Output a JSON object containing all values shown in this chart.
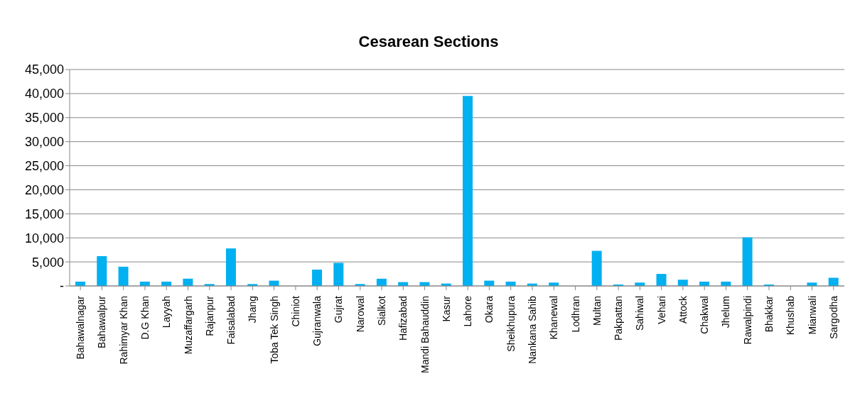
{
  "chart_data": {
    "type": "bar",
    "title": "Cesarean Sections",
    "categories": [
      "Bahawalnagar",
      "Bahawalpur",
      "Rahimyar Khan",
      "D.G Khan",
      "Layyah",
      "Muzaffargarh",
      "Rajanpur",
      "Faisalabad",
      "Jhang",
      "Toba Tek Singh",
      "Chiniot",
      "Gujranwala",
      "Gujrat",
      "Narowal",
      "Sialkot",
      "Hafizabad",
      "Mandi Bahauddin",
      "Kasur",
      "Lahore",
      "Okara",
      "Sheikhupura",
      "Nankana Sahib",
      "Khanewal",
      "Lodhran",
      "Multan",
      "Pakpattan",
      "Sahiwal",
      "Vehari",
      "Attock",
      "Chakwal",
      "Jhelum",
      "Rawalpindi",
      "Bhakkar",
      "Khushab",
      "Mianwali",
      "Sargodha"
    ],
    "values": [
      900,
      6200,
      4000,
      900,
      900,
      1500,
      400,
      7800,
      400,
      1100,
      0,
      3400,
      4800,
      400,
      1500,
      800,
      800,
      500,
      39500,
      1100,
      900,
      500,
      700,
      0,
      7300,
      300,
      700,
      2500,
      1300,
      900,
      900,
      10100,
      300,
      0,
      700,
      1700
    ],
    "color": "#00b0f0",
    "ylim": [
      0,
      45000
    ],
    "yticks": [
      {
        "value": 0,
        "label": "-"
      },
      {
        "value": 5000,
        "label": "5,000"
      },
      {
        "value": 10000,
        "label": "10,000"
      },
      {
        "value": 15000,
        "label": "15,000"
      },
      {
        "value": 20000,
        "label": "20,000"
      },
      {
        "value": 25000,
        "label": "25,000"
      },
      {
        "value": 30000,
        "label": "30,000"
      },
      {
        "value": 35000,
        "label": "35,000"
      },
      {
        "value": 40000,
        "label": "40,000"
      },
      {
        "value": 45000,
        "label": "45,000"
      }
    ],
    "grid": "y"
  }
}
